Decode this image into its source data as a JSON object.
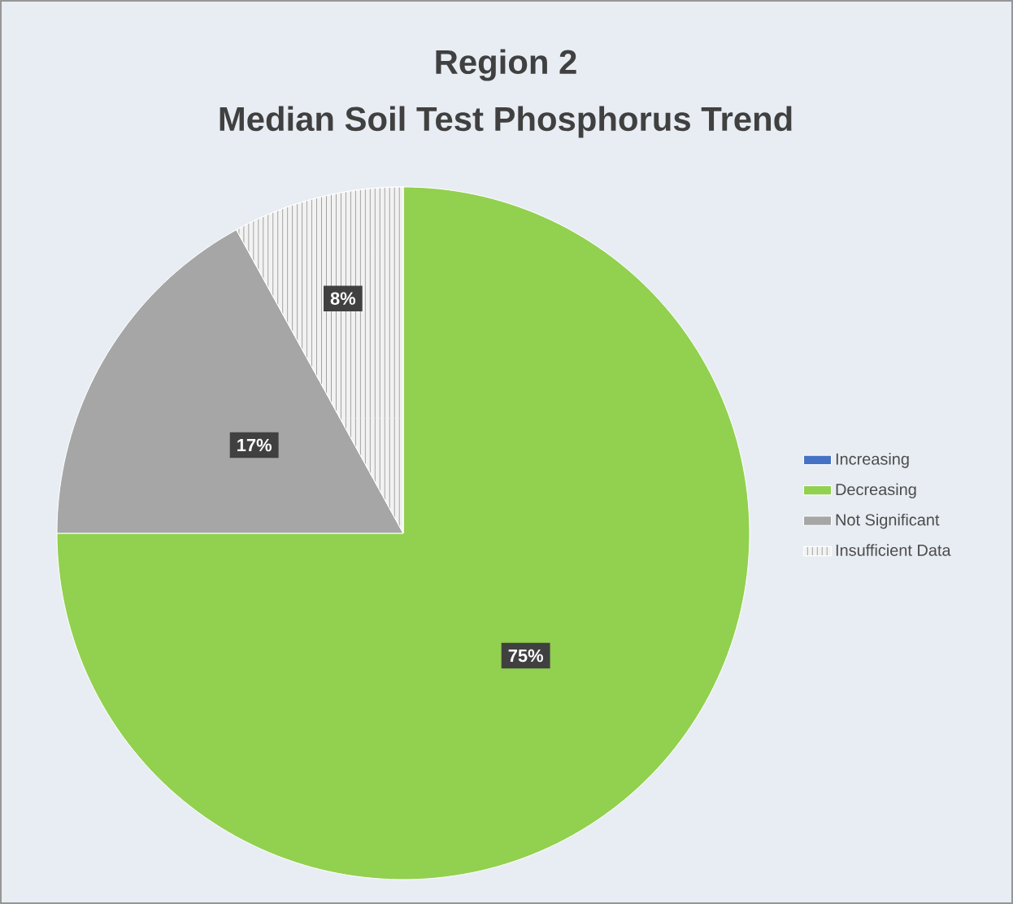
{
  "chart_data": {
    "type": "pie",
    "title": "Region 2",
    "subtitle": "Median Soil Test Phosphorus Trend",
    "categories": [
      "Increasing",
      "Decreasing",
      "Not Significant",
      "Insufficient Data"
    ],
    "values": [
      0,
      75,
      17,
      8
    ],
    "colors": [
      "#4472c4",
      "#92d050",
      "#a6a6a6",
      "#f2f2f2"
    ],
    "value_labels": [
      null,
      "75%",
      "17%",
      "8%"
    ],
    "legend": "right"
  }
}
